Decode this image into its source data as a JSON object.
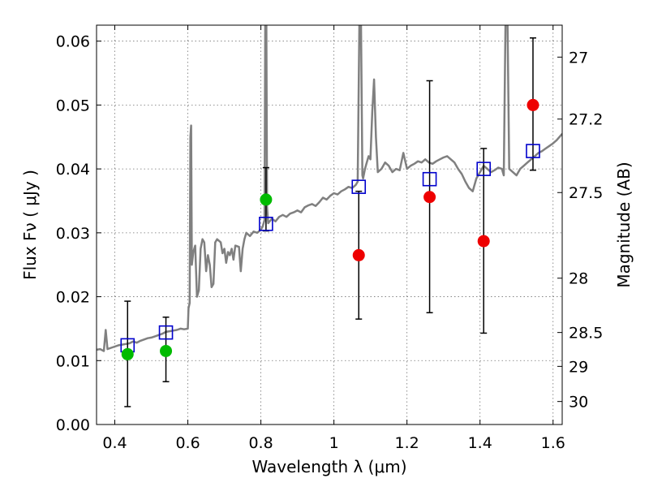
{
  "chart_data": {
    "type": "scatter",
    "xlabel": "Wavelength  λ (μm)",
    "ylabel": "Flux  Fν  ( μJy )",
    "y2label": "Magnitude (AB)",
    "xlim": [
      0.35,
      1.625
    ],
    "ylim": [
      0.0,
      0.0625
    ],
    "grid": true,
    "x_ticks": [
      0.4,
      0.6,
      0.8,
      1.0,
      1.2,
      1.4,
      1.6
    ],
    "x_tick_labels": [
      "0.4",
      "0.6",
      "0.8",
      "1",
      "1.2",
      "1.4",
      "1.6"
    ],
    "y_ticks": [
      0.0,
      0.01,
      0.02,
      0.03,
      0.04,
      0.05,
      0.06
    ],
    "y_tick_labels": [
      "0.00",
      "0.01",
      "0.02",
      "0.03",
      "0.04",
      "0.05",
      "0.06"
    ],
    "y2_ticks": [
      {
        "label": "27",
        "flux": 0.0575
      },
      {
        "label": "27.2",
        "flux": 0.0478
      },
      {
        "label": "27.5",
        "flux": 0.0363
      },
      {
        "label": "28",
        "flux": 0.0229
      },
      {
        "label": "28.5",
        "flux": 0.0144
      },
      {
        "label": "29",
        "flux": 0.0091
      },
      {
        "label": "30",
        "flux": 0.0036
      }
    ],
    "model_spectrum": {
      "color": "#808080",
      "points": [
        [
          0.35,
          0.0117
        ],
        [
          0.36,
          0.0118
        ],
        [
          0.37,
          0.0115
        ],
        [
          0.375,
          0.0148
        ],
        [
          0.38,
          0.0118
        ],
        [
          0.39,
          0.012
        ],
        [
          0.4,
          0.0122
        ],
        [
          0.41,
          0.0124
        ],
        [
          0.42,
          0.0125
        ],
        [
          0.43,
          0.0126
        ],
        [
          0.44,
          0.0127
        ],
        [
          0.45,
          0.013
        ],
        [
          0.46,
          0.0128
        ],
        [
          0.47,
          0.0131
        ],
        [
          0.48,
          0.0133
        ],
        [
          0.49,
          0.0135
        ],
        [
          0.5,
          0.0136
        ],
        [
          0.51,
          0.0138
        ],
        [
          0.52,
          0.014
        ],
        [
          0.53,
          0.0142
        ],
        [
          0.54,
          0.0145
        ],
        [
          0.55,
          0.0146
        ],
        [
          0.56,
          0.0147
        ],
        [
          0.57,
          0.0148
        ],
        [
          0.58,
          0.015
        ],
        [
          0.59,
          0.0149
        ],
        [
          0.6,
          0.015
        ],
        [
          0.602,
          0.0182
        ],
        [
          0.605,
          0.019
        ],
        [
          0.607,
          0.045
        ],
        [
          0.609,
          0.0468
        ],
        [
          0.611,
          0.025
        ],
        [
          0.615,
          0.027
        ],
        [
          0.62,
          0.028
        ],
        [
          0.625,
          0.02
        ],
        [
          0.63,
          0.021
        ],
        [
          0.635,
          0.0275
        ],
        [
          0.64,
          0.029
        ],
        [
          0.645,
          0.0285
        ],
        [
          0.65,
          0.024
        ],
        [
          0.655,
          0.0265
        ],
        [
          0.66,
          0.025
        ],
        [
          0.665,
          0.0215
        ],
        [
          0.67,
          0.022
        ],
        [
          0.675,
          0.0285
        ],
        [
          0.68,
          0.029
        ],
        [
          0.69,
          0.0285
        ],
        [
          0.695,
          0.0268
        ],
        [
          0.7,
          0.0275
        ],
        [
          0.705,
          0.0253
        ],
        [
          0.71,
          0.027
        ],
        [
          0.715,
          0.0265
        ],
        [
          0.72,
          0.0275
        ],
        [
          0.725,
          0.0258
        ],
        [
          0.73,
          0.028
        ],
        [
          0.74,
          0.0278
        ],
        [
          0.745,
          0.024
        ],
        [
          0.75,
          0.0275
        ],
        [
          0.755,
          0.029
        ],
        [
          0.76,
          0.03
        ],
        [
          0.77,
          0.0295
        ],
        [
          0.78,
          0.0302
        ],
        [
          0.79,
          0.03
        ],
        [
          0.8,
          0.0305
        ],
        [
          0.805,
          0.031
        ],
        [
          0.81,
          0.032
        ],
        [
          0.812,
          0.064
        ],
        [
          0.815,
          0.064
        ],
        [
          0.817,
          0.034
        ],
        [
          0.82,
          0.0315
        ],
        [
          0.83,
          0.0322
        ],
        [
          0.84,
          0.0318
        ],
        [
          0.85,
          0.0325
        ],
        [
          0.86,
          0.0328
        ],
        [
          0.87,
          0.0325
        ],
        [
          0.88,
          0.033
        ],
        [
          0.89,
          0.0332
        ],
        [
          0.9,
          0.0335
        ],
        [
          0.91,
          0.0332
        ],
        [
          0.92,
          0.034
        ],
        [
          0.93,
          0.0343
        ],
        [
          0.94,
          0.0345
        ],
        [
          0.95,
          0.0342
        ],
        [
          0.96,
          0.0348
        ],
        [
          0.97,
          0.0355
        ],
        [
          0.98,
          0.0352
        ],
        [
          0.99,
          0.0358
        ],
        [
          1.0,
          0.0362
        ],
        [
          1.01,
          0.036
        ],
        [
          1.02,
          0.0365
        ],
        [
          1.03,
          0.0368
        ],
        [
          1.04,
          0.0372
        ],
        [
          1.05,
          0.037
        ],
        [
          1.06,
          0.0375
        ],
        [
          1.065,
          0.038
        ],
        [
          1.07,
          0.064
        ],
        [
          1.074,
          0.064
        ],
        [
          1.078,
          0.039
        ],
        [
          1.08,
          0.0385
        ],
        [
          1.085,
          0.04
        ],
        [
          1.09,
          0.041
        ],
        [
          1.095,
          0.042
        ],
        [
          1.1,
          0.0415
        ],
        [
          1.105,
          0.049
        ],
        [
          1.11,
          0.054
        ],
        [
          1.115,
          0.045
        ],
        [
          1.12,
          0.0395
        ],
        [
          1.13,
          0.04
        ],
        [
          1.14,
          0.041
        ],
        [
          1.15,
          0.0405
        ],
        [
          1.16,
          0.0395
        ],
        [
          1.17,
          0.04
        ],
        [
          1.18,
          0.0398
        ],
        [
          1.19,
          0.0425
        ],
        [
          1.2,
          0.04
        ],
        [
          1.21,
          0.0405
        ],
        [
          1.22,
          0.0408
        ],
        [
          1.23,
          0.0412
        ],
        [
          1.24,
          0.041
        ],
        [
          1.25,
          0.0415
        ],
        [
          1.26,
          0.041
        ],
        [
          1.27,
          0.0408
        ],
        [
          1.28,
          0.0412
        ],
        [
          1.29,
          0.0415
        ],
        [
          1.3,
          0.0418
        ],
        [
          1.31,
          0.042
        ],
        [
          1.32,
          0.0415
        ],
        [
          1.33,
          0.041
        ],
        [
          1.34,
          0.04
        ],
        [
          1.35,
          0.0392
        ],
        [
          1.36,
          0.038
        ],
        [
          1.37,
          0.037
        ],
        [
          1.38,
          0.0365
        ],
        [
          1.39,
          0.0385
        ],
        [
          1.4,
          0.0395
        ],
        [
          1.41,
          0.0405
        ],
        [
          1.42,
          0.04
        ],
        [
          1.43,
          0.0395
        ],
        [
          1.44,
          0.0398
        ],
        [
          1.45,
          0.0402
        ],
        [
          1.46,
          0.04
        ],
        [
          1.465,
          0.039
        ],
        [
          1.47,
          0.064
        ],
        [
          1.475,
          0.064
        ],
        [
          1.48,
          0.04
        ],
        [
          1.49,
          0.0395
        ],
        [
          1.5,
          0.039
        ],
        [
          1.51,
          0.04
        ],
        [
          1.52,
          0.0405
        ],
        [
          1.53,
          0.041
        ],
        [
          1.54,
          0.0415
        ],
        [
          1.55,
          0.042
        ],
        [
          1.56,
          0.0425
        ],
        [
          1.57,
          0.0428
        ],
        [
          1.58,
          0.0432
        ],
        [
          1.59,
          0.0436
        ],
        [
          1.6,
          0.044
        ],
        [
          1.61,
          0.0445
        ],
        [
          1.625,
          0.0455
        ]
      ]
    },
    "model_photometry": {
      "color": "#0000cc",
      "marker": "open-square",
      "points": [
        [
          0.435,
          0.0124
        ],
        [
          0.54,
          0.0144
        ],
        [
          0.814,
          0.0314
        ],
        [
          1.068,
          0.0372
        ],
        [
          1.262,
          0.0384
        ],
        [
          1.41,
          0.04
        ],
        [
          1.545,
          0.0428
        ]
      ]
    },
    "observed_detections": {
      "color": "#00bb00",
      "marker": "filled-circle",
      "points": [
        {
          "x": 0.435,
          "y": 0.011,
          "yerr_low": 0.0028,
          "yerr_high": 0.0193
        },
        {
          "x": 0.54,
          "y": 0.0115,
          "yerr_low": 0.0067,
          "yerr_high": 0.0168
        },
        {
          "x": 0.814,
          "y": 0.0352,
          "yerr_low": 0.0303,
          "yerr_high": 0.0402
        }
      ]
    },
    "observed_limits": {
      "color": "#ee0000",
      "marker": "filled-circle",
      "points": [
        {
          "x": 1.068,
          "y": 0.0265,
          "yerr_low": 0.0165,
          "yerr_high": 0.0365
        },
        {
          "x": 1.262,
          "y": 0.0356,
          "yerr_low": 0.0175,
          "yerr_high": 0.0538
        },
        {
          "x": 1.41,
          "y": 0.0287,
          "yerr_low": 0.0143,
          "yerr_high": 0.0432
        },
        {
          "x": 1.545,
          "y": 0.05,
          "yerr_low": 0.0398,
          "yerr_high": 0.0605
        }
      ]
    }
  }
}
